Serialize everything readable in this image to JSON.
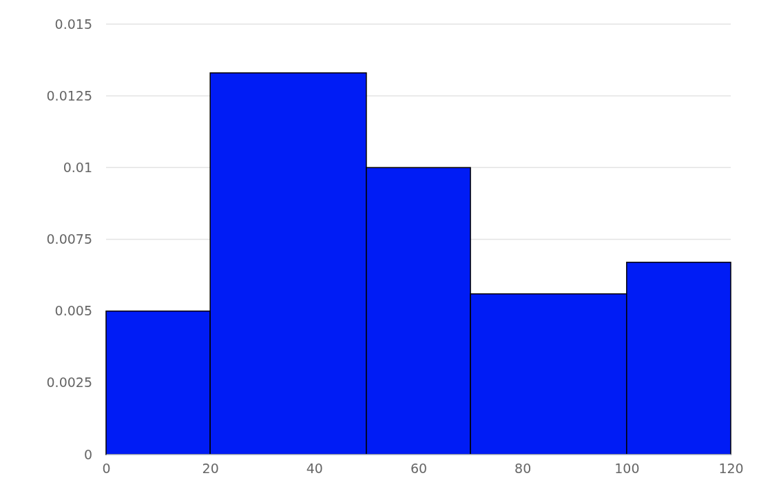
{
  "chart_data": {
    "type": "histogram",
    "bins": [
      0,
      20,
      50,
      70,
      100,
      120
    ],
    "values": [
      0.005,
      0.0133,
      0.01,
      0.0056,
      0.0067
    ],
    "color": "#001cf5",
    "xlim": [
      0,
      120
    ],
    "xticks": [
      0,
      20,
      40,
      60,
      80,
      100,
      120
    ],
    "ylim": [
      0,
      0.015
    ],
    "yticks": [
      0,
      0.0025,
      0.005,
      0.0075,
      0.01,
      0.0125,
      0.015
    ],
    "grid": "y"
  }
}
